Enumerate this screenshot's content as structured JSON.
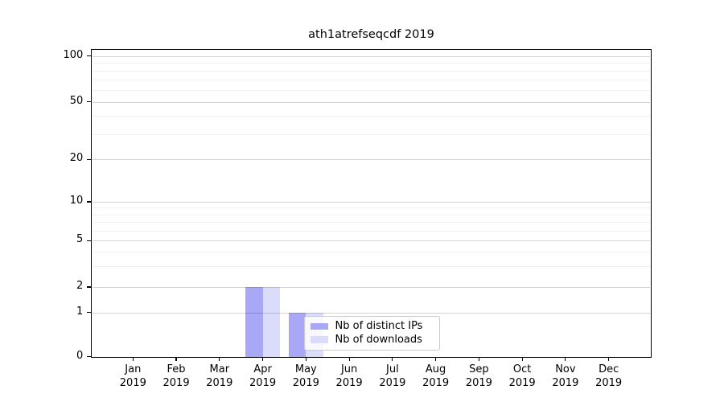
{
  "chart_data": {
    "type": "bar",
    "title": "ath1atrefseqcdf 2019",
    "categories": [
      "Jan",
      "Feb",
      "Mar",
      "Apr",
      "May",
      "Jun",
      "Jul",
      "Aug",
      "Sep",
      "Oct",
      "Nov",
      "Dec"
    ],
    "year_label": "2019",
    "series": [
      {
        "name": "Nb of distinct IPs",
        "color": "#a8a8f6",
        "values": [
          0,
          0,
          0,
          2,
          1,
          0,
          0,
          0,
          0,
          0,
          0,
          0
        ]
      },
      {
        "name": "Nb of downloads",
        "color": "#dbdbfa",
        "values": [
          0,
          0,
          0,
          2,
          1,
          0,
          0,
          0,
          0,
          0,
          0,
          0
        ]
      }
    ],
    "y_axis": {
      "scale": "log-like",
      "major_ticks": [
        0,
        1,
        2,
        5,
        10,
        20,
        50,
        100
      ],
      "minor_gridlines": [
        3,
        4,
        6,
        7,
        8,
        9,
        30,
        40,
        60,
        70,
        80,
        90
      ],
      "ylim": [
        0,
        110
      ]
    },
    "xlabel": "",
    "ylabel": "",
    "grid": "on",
    "legend_position": "lower center"
  }
}
